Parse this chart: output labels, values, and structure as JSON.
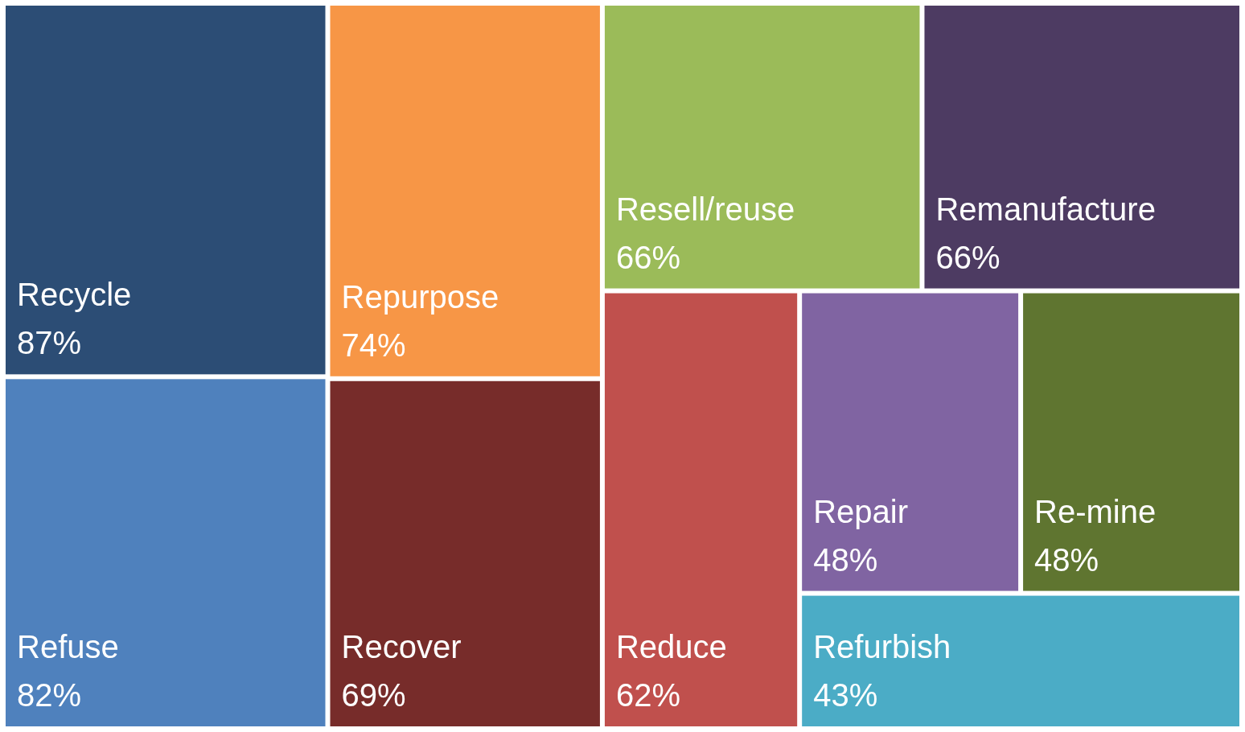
{
  "chart_data": {
    "type": "other",
    "categories": [
      "Recycle",
      "Refuse",
      "Repurpose",
      "Recover",
      "Resell/reuse",
      "Remanufacture",
      "Reduce",
      "Repair",
      "Re-mine",
      "Refurbish"
    ],
    "values": [
      87,
      82,
      74,
      69,
      66,
      66,
      62,
      48,
      48,
      43
    ],
    "value_labels": [
      "87%",
      "82%",
      "74%",
      "69%",
      "66%",
      "66%",
      "62%",
      "48%",
      "48%",
      "43%"
    ],
    "colors": [
      "#2c4d75",
      "#4f81bd",
      "#f79646",
      "#772c2a",
      "#9bbb59",
      "#4d3b62",
      "#c0504d",
      "#8064a2",
      "#5f7530",
      "#4bacc6"
    ]
  }
}
